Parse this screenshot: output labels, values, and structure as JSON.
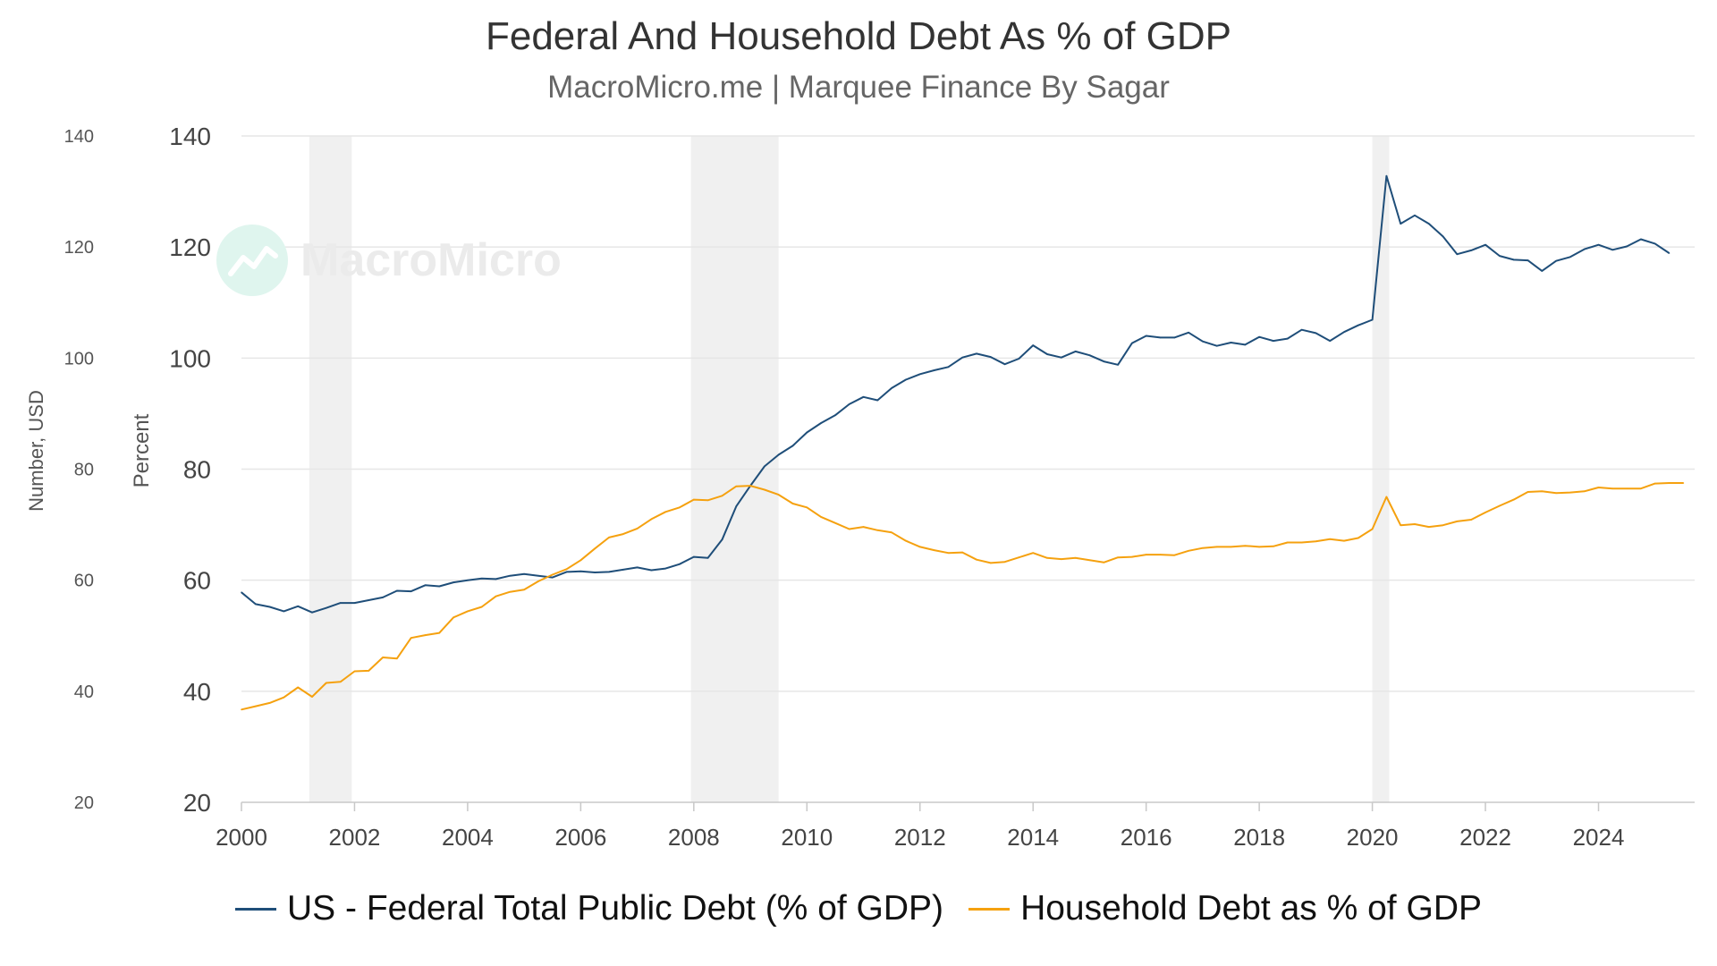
{
  "title": "Federal And Household Debt As % of GDP",
  "subtitle": "MacroMicro.me | Marquee Finance By Sagar",
  "watermark": "MacroMicro",
  "colors": {
    "federal": "#1f4e79",
    "household": "#f5a10f",
    "recession": "#f0f0f0",
    "grid": "#e6e6e6",
    "axis_text": "#555555"
  },
  "chart_data": {
    "type": "line",
    "xlabel": "",
    "ylabel_left": "Number, USD",
    "ylabel_right": "Percent",
    "xlim": [
      2000,
      2025.7
    ],
    "ylim": [
      20,
      140
    ],
    "x_ticks": [
      2000,
      2002,
      2004,
      2006,
      2008,
      2010,
      2012,
      2014,
      2016,
      2018,
      2020,
      2022,
      2024
    ],
    "y_ticks_left": [
      20,
      40,
      60,
      80,
      100,
      120,
      140
    ],
    "y_ticks_right": [
      20,
      40,
      60,
      80,
      100,
      120,
      140
    ],
    "grid": "horizontal",
    "legend_position": "bottom-center",
    "recession_periods": [
      [
        2001.2,
        2001.95
      ],
      [
        2007.95,
        2009.5
      ],
      [
        2020.0,
        2020.3
      ]
    ],
    "series": [
      {
        "name": "US - Federal Total Public Debt (% of GDP)",
        "color": "#1f4e79",
        "x": [
          2000.0,
          2000.25,
          2000.5,
          2000.75,
          2001.0,
          2001.25,
          2001.5,
          2001.75,
          2002.0,
          2002.25,
          2002.5,
          2002.75,
          2003.0,
          2003.25,
          2003.5,
          2003.75,
          2004.0,
          2004.25,
          2004.5,
          2004.75,
          2005.0,
          2005.25,
          2005.5,
          2005.75,
          2006.0,
          2006.25,
          2006.5,
          2006.75,
          2007.0,
          2007.25,
          2007.5,
          2007.75,
          2008.0,
          2008.25,
          2008.5,
          2008.75,
          2009.0,
          2009.25,
          2009.5,
          2009.75,
          2010.0,
          2010.25,
          2010.5,
          2010.75,
          2011.0,
          2011.25,
          2011.5,
          2011.75,
          2012.0,
          2012.25,
          2012.5,
          2012.75,
          2013.0,
          2013.25,
          2013.5,
          2013.75,
          2014.0,
          2014.25,
          2014.5,
          2014.75,
          2015.0,
          2015.25,
          2015.5,
          2015.75,
          2016.0,
          2016.25,
          2016.5,
          2016.75,
          2017.0,
          2017.25,
          2017.5,
          2017.75,
          2018.0,
          2018.25,
          2018.5,
          2018.75,
          2019.0,
          2019.25,
          2019.5,
          2019.75,
          2020.0,
          2020.25,
          2020.5,
          2020.75,
          2021.0,
          2021.25,
          2021.5,
          2021.75,
          2022.0,
          2022.25,
          2022.5,
          2022.75,
          2023.0,
          2023.25,
          2023.5,
          2023.75,
          2024.0,
          2024.25,
          2024.5,
          2024.75,
          2025.0,
          2025.25
        ],
        "values": [
          57.8,
          55.7,
          55.2,
          54.4,
          55.3,
          54.2,
          55.0,
          55.9,
          55.9,
          56.4,
          56.9,
          58.1,
          58.0,
          59.1,
          58.9,
          59.6,
          60.0,
          60.3,
          60.2,
          60.8,
          61.1,
          60.8,
          60.5,
          61.5,
          61.6,
          61.4,
          61.5,
          61.9,
          62.3,
          61.8,
          62.1,
          62.9,
          64.2,
          64.0,
          67.3,
          73.3,
          77.0,
          80.5,
          82.6,
          84.2,
          86.6,
          88.3,
          89.7,
          91.7,
          93.0,
          92.4,
          94.6,
          96.1,
          97.1,
          97.8,
          98.4,
          100.1,
          100.8,
          100.2,
          98.9,
          99.9,
          102.3,
          100.7,
          100.1,
          101.2,
          100.5,
          99.4,
          98.8,
          102.7,
          104.0,
          103.7,
          103.7,
          104.6,
          103.0,
          102.2,
          102.8,
          102.4,
          103.8,
          103.1,
          103.5,
          105.1,
          104.5,
          103.1,
          104.7,
          105.9,
          106.9,
          132.8,
          124.2,
          125.7,
          124.2,
          121.9,
          118.7,
          119.4,
          120.4,
          118.4,
          117.7,
          117.6,
          115.7,
          117.5,
          118.2,
          119.6,
          120.4,
          119.5,
          120.1,
          121.4,
          120.6,
          118.9
        ]
      },
      {
        "name": "Household Debt as % of GDP",
        "color": "#f5a10f",
        "x": [
          2000.0,
          2000.25,
          2000.5,
          2000.75,
          2001.0,
          2001.25,
          2001.5,
          2001.75,
          2002.0,
          2002.25,
          2002.5,
          2002.75,
          2003.0,
          2003.25,
          2003.5,
          2003.75,
          2004.0,
          2004.25,
          2004.5,
          2004.75,
          2005.0,
          2005.25,
          2005.5,
          2005.75,
          2006.0,
          2006.25,
          2006.5,
          2006.75,
          2007.0,
          2007.25,
          2007.5,
          2007.75,
          2008.0,
          2008.25,
          2008.5,
          2008.75,
          2009.0,
          2009.25,
          2009.5,
          2009.75,
          2010.0,
          2010.25,
          2010.5,
          2010.75,
          2011.0,
          2011.25,
          2011.5,
          2011.75,
          2012.0,
          2012.25,
          2012.5,
          2012.75,
          2013.0,
          2013.25,
          2013.5,
          2013.75,
          2014.0,
          2014.25,
          2014.5,
          2014.75,
          2015.0,
          2015.25,
          2015.5,
          2015.75,
          2016.0,
          2016.25,
          2016.5,
          2016.75,
          2017.0,
          2017.25,
          2017.5,
          2017.75,
          2018.0,
          2018.25,
          2018.5,
          2018.75,
          2019.0,
          2019.25,
          2019.5,
          2019.75,
          2020.0,
          2020.25,
          2020.5,
          2020.75,
          2021.0,
          2021.25,
          2021.5,
          2021.75,
          2022.0,
          2022.25,
          2022.5,
          2022.75,
          2023.0,
          2023.25,
          2023.5,
          2023.75,
          2024.0,
          2024.25,
          2024.5,
          2024.75,
          2025.0,
          2025.25,
          2025.5
        ],
        "values": [
          36.7,
          37.3,
          37.9,
          38.9,
          40.7,
          39.0,
          41.5,
          41.7,
          43.6,
          43.7,
          46.1,
          45.9,
          49.6,
          50.1,
          50.5,
          53.3,
          54.4,
          55.2,
          57.1,
          57.9,
          58.3,
          59.8,
          61.0,
          62.0,
          63.6,
          65.7,
          67.7,
          68.3,
          69.3,
          71.0,
          72.3,
          73.1,
          74.5,
          74.4,
          75.2,
          76.9,
          77.0,
          76.3,
          75.4,
          73.8,
          73.1,
          71.4,
          70.3,
          69.2,
          69.6,
          69.0,
          68.6,
          67.1,
          66.0,
          65.4,
          64.9,
          65.0,
          63.7,
          63.1,
          63.3,
          64.1,
          64.9,
          64.0,
          63.8,
          64.0,
          63.6,
          63.2,
          64.1,
          64.2,
          64.6,
          64.6,
          64.5,
          65.3,
          65.8,
          66.0,
          66.0,
          66.2,
          66.0,
          66.1,
          66.8,
          66.8,
          67.0,
          67.4,
          67.1,
          67.6,
          69.2,
          75.0,
          69.9,
          70.1,
          69.6,
          69.9,
          70.6,
          70.9,
          72.2,
          73.4,
          74.5,
          75.9,
          76.0,
          75.7,
          75.8,
          76.0,
          76.7,
          76.5,
          76.5,
          76.5,
          77.4,
          77.5,
          77.5
        ]
      }
    ]
  }
}
